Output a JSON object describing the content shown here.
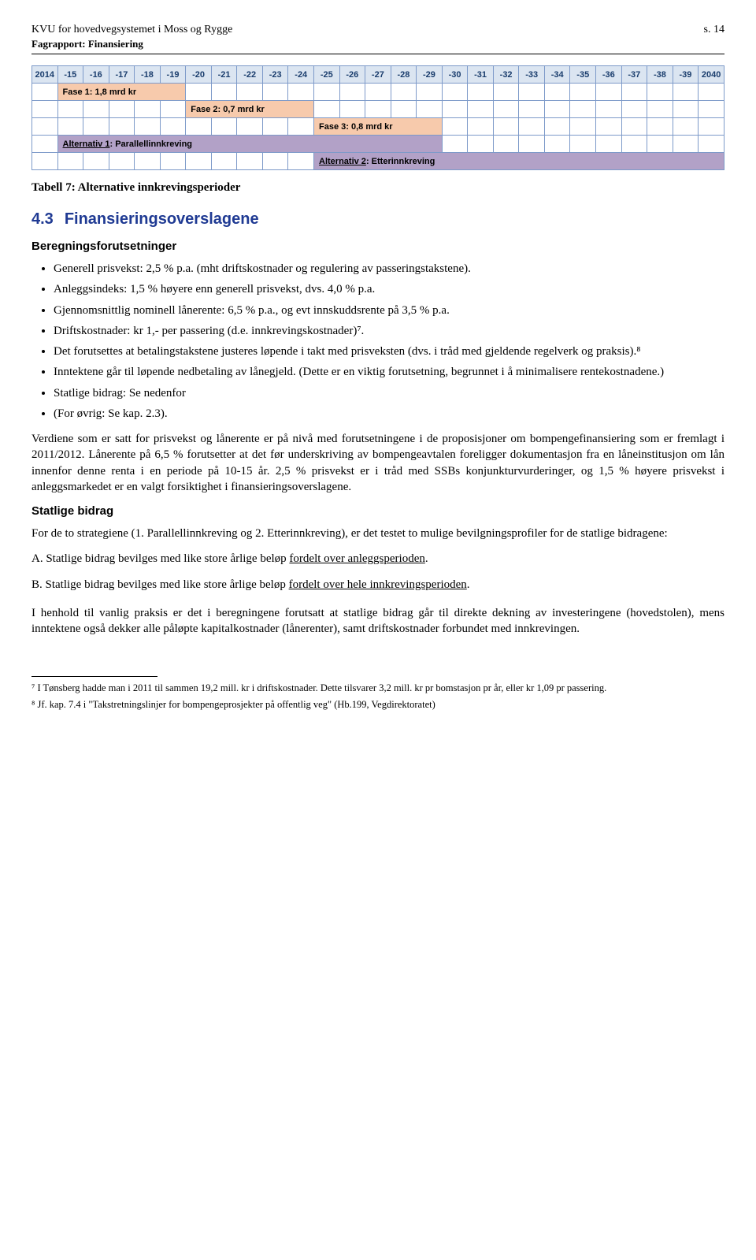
{
  "header": {
    "left": "KVU for hovedvegsystemet i Moss og Rygge",
    "right": "s. 14",
    "sub": "Fagrapport: Finansiering"
  },
  "gantt": {
    "years": [
      "2014",
      "-15",
      "-16",
      "-17",
      "-18",
      "-19",
      "-20",
      "-21",
      "-22",
      "-23",
      "-24",
      "-25",
      "-26",
      "-27",
      "-28",
      "-29",
      "-30",
      "-31",
      "-32",
      "-33",
      "-34",
      "-35",
      "-36",
      "-37",
      "-38",
      "-39",
      "2040"
    ],
    "phase1": {
      "start": 1,
      "span": 5,
      "label": "Fase 1: 1,8 mrd kr"
    },
    "phase2": {
      "start": 6,
      "span": 5,
      "label": "Fase 2: 0,7 mrd kr"
    },
    "phase3": {
      "start": 11,
      "span": 5,
      "label": "Fase 3: 0,8 mrd kr"
    },
    "alt1": {
      "start": 1,
      "span": 15,
      "prefix": "Alternativ 1",
      "rest": ": Parallellinnkreving"
    },
    "alt2": {
      "start": 11,
      "span": 16,
      "prefix": "Alternativ 2",
      "rest": ": Etterinnkreving"
    },
    "caption": "Tabell 7: Alternative innkrevingsperioder"
  },
  "section": {
    "num": "4.3",
    "title": "Finansieringsoverslagene"
  },
  "sub1": "Beregningsforutsetninger",
  "bullets": [
    "Generell prisvekst: 2,5 % p.a. (mht driftskostnader og regulering av passeringstakstene).",
    "Anleggsindeks: 1,5 % høyere enn generell prisvekst, dvs. 4,0 % p.a.",
    "Gjennomsnittlig nominell lånerente: 6,5 % p.a., og evt innskuddsrente på 3,5 % p.a.",
    "Driftskostnader: kr 1,- per passering (d.e. innkrevingskostnader)⁷.",
    "Det forutsettes at betalingstakstene justeres løpende i takt med prisveksten (dvs. i tråd med gjeldende regelverk og praksis).⁸",
    "Inntektene går til løpende nedbetaling av lånegjeld. (Dette er en viktig forutsetning, begrunnet i å minimalisere rentekostnadene.)",
    "Statlige bidrag: Se nedenfor",
    "(For øvrig: Se kap. 2.3)."
  ],
  "para1": "Verdiene som er satt for prisvekst og lånerente er på nivå med forutsetningene i de proposisjoner om bompengefinansiering som er fremlagt i 2011/2012. Lånerente på 6,5 % forutsetter at det før underskriving av bompengeavtalen foreligger dokumentasjon fra en låneinstitusjon om lån innenfor denne renta i en periode på 10-15 år. 2,5 % prisvekst er i tråd med SSBs konjunkturvurderinger, og 1,5 % høyere prisvekst i anleggsmarkedet er en valgt forsiktighet i finansieringsoverslagene.",
  "sub2": "Statlige bidrag",
  "para2": "For de to strategiene (1. Parallellinnkreving og 2. Etterinnkreving), er det testet to mulige bevilgningsprofiler for de statlige bidragene:",
  "optA": {
    "pre": "A. Statlige bidrag bevilges med like store årlige beløp ",
    "u": "fordelt over anleggsperioden",
    "post": "."
  },
  "optB": {
    "pre": "B. Statlige bidrag bevilges med like store årlige beløp ",
    "u": "fordelt over hele innkrevingsperioden",
    "post": "."
  },
  "para3": "I henhold til vanlig praksis er det i beregningene forutsatt at statlige bidrag går til direkte dekning av investeringene (hovedstolen), mens inntektene også dekker alle påløpte kapitalkostnader (lånerenter), samt driftskostnader forbundet med innkrevingen.",
  "footnotes": {
    "f7": "⁷ I Tønsberg hadde man i 2011 til sammen 19,2 mill. kr i driftskostnader. Dette tilsvarer 3,2 mill. kr pr bomstasjon pr år, eller kr 1,09 pr passering.",
    "f8": "⁸ Jf. kap. 7.4 i \"Takstretningslinjer for bompengeprosjekter på offentlig veg\" (Hb.199, Vegdirektoratet)"
  }
}
